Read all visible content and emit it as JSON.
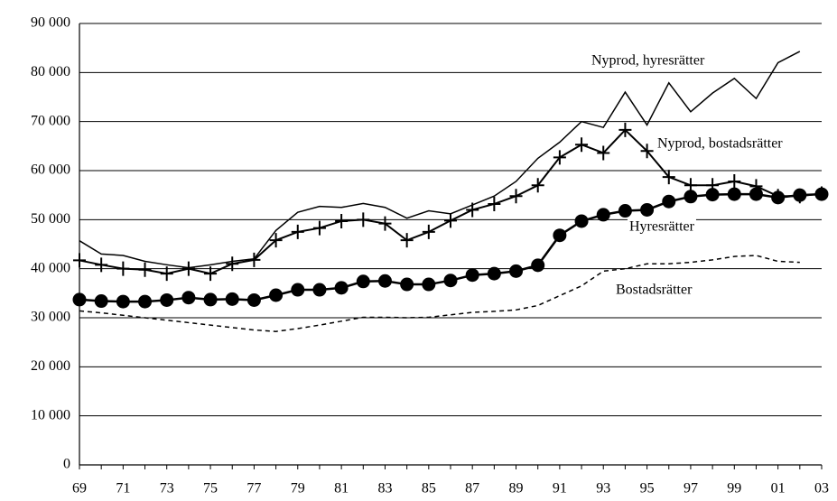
{
  "chart_data": {
    "type": "line",
    "categories": [
      "69",
      null,
      "71",
      null,
      "73",
      null,
      "75",
      null,
      "77",
      null,
      "79",
      null,
      "81",
      null,
      "83",
      null,
      "85",
      null,
      "87",
      null,
      "89",
      null,
      "91",
      null,
      "93",
      null,
      "95",
      null,
      "97",
      null,
      "99",
      null,
      "01",
      null,
      "03"
    ],
    "ylim": [
      0,
      90000
    ],
    "yticks": [
      0,
      {
        "value": 10000,
        "label": "10 000"
      },
      {
        "value": 20000,
        "label": "20 000"
      },
      {
        "value": 30000,
        "label": "30 000"
      },
      {
        "value": 40000,
        "label": "40 000"
      },
      {
        "value": 50000,
        "label": "50 000"
      },
      {
        "value": 60000,
        "label": "60 000"
      },
      {
        "value": 70000,
        "label": "70 000"
      },
      {
        "value": 80000,
        "label": "80 000"
      },
      {
        "value": 90000,
        "label": "90 000"
      }
    ],
    "grid": true,
    "series": [
      {
        "name": "Nyprod, hyresrätter",
        "color": "#000000",
        "marker": "none",
        "dash": false,
        "values": [
          45700,
          43000,
          42700,
          41500,
          40800,
          40200,
          40800,
          41500,
          42000,
          47800,
          51500,
          52700,
          52500,
          53300,
          52500,
          50300,
          51800,
          51200,
          53000,
          54800,
          57800,
          62500,
          65800,
          70000,
          68800,
          76000,
          69300,
          77900,
          72000,
          75800,
          78800,
          74700,
          82000,
          84300,
          null
        ]
      },
      {
        "name": "Nyprod, bostadsrätter",
        "color": "#000000",
        "marker": "plus",
        "dash": false,
        "values": [
          41700,
          40800,
          40000,
          39800,
          39000,
          40000,
          39000,
          41000,
          41800,
          45800,
          47500,
          48300,
          49700,
          50000,
          49200,
          45800,
          47500,
          49800,
          52000,
          53200,
          54800,
          57000,
          62700,
          65300,
          63600,
          68300,
          64000,
          58700,
          57000,
          57000,
          57800,
          56800,
          54800,
          54800,
          55300
        ]
      },
      {
        "name": "Hyresrätter",
        "color": "#000000",
        "marker": "circle",
        "dash": false,
        "values": [
          33700,
          33400,
          33300,
          33300,
          33600,
          34100,
          33700,
          33800,
          33600,
          34600,
          35700,
          35700,
          36100,
          37400,
          37500,
          36800,
          36800,
          37600,
          38700,
          39000,
          39500,
          40700,
          46800,
          49700,
          51000,
          51800,
          52000,
          53700,
          54700,
          55100,
          55200,
          55200,
          54500,
          55000,
          55200
        ]
      },
      {
        "name": "Bostadsrätter",
        "color": "#000000",
        "marker": "none",
        "dash": true,
        "values": [
          31400,
          31000,
          30500,
          30000,
          29500,
          29000,
          28500,
          28000,
          27500,
          27200,
          27800,
          28500,
          29300,
          30100,
          30100,
          30000,
          30100,
          30600,
          31100,
          31300,
          31600,
          32500,
          34500,
          36500,
          39500,
          40000,
          41000,
          41000,
          41300,
          41800,
          42500,
          42700,
          41500,
          41300,
          null
        ]
      }
    ]
  }
}
